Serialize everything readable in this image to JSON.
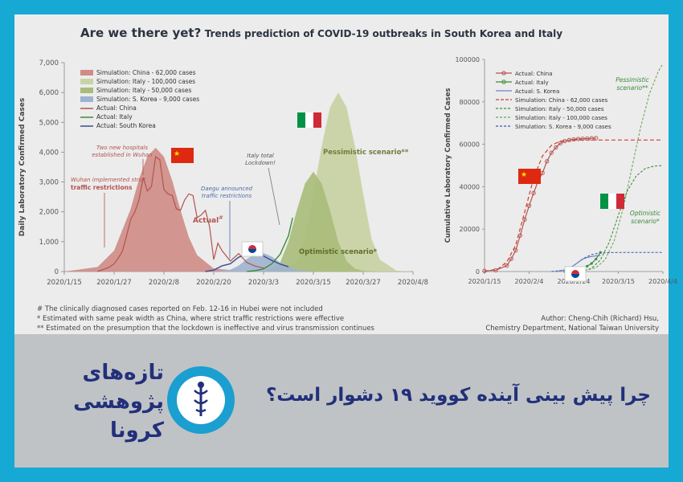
{
  "title": {
    "main": "Are we there yet?",
    "sub": "Trends prediction of COVID-19 outbreaks in South Korea and Italy"
  },
  "footnotes": [
    "#  The clinically diagnosed cases reported on Feb. 12-16 in Hubei were not included",
    "*  Estimated with same peak width as China, where strict traffic restrictions were effective",
    "** Estimated on the presumption that the lockdown is ineffective and virus transmission continues"
  ],
  "author": {
    "line1": "Author: Cheng-Chih (Richard) Hsu,",
    "line2": "Chemistry Department, National Taiwan University"
  },
  "banner": {
    "persian_title": "چرا پیش بینی آینده کووید ۱۹ دشوار است؟",
    "logo_text_1": "تازه‌های",
    "logo_text_2": "پژوهشی",
    "logo_text_3": "کرونا"
  },
  "colors": {
    "china": "#b4534f",
    "china_fill": "#cf8c86",
    "italy_pess": "#c9d3a5",
    "italy_opt": "#a9bd79",
    "italy_actual": "#3d8b3d",
    "korea": "#3a4e8c",
    "korea_fill": "#9fb2cf",
    "annot": "#b4534f",
    "blue_annot": "#4a6ea8"
  },
  "chart_data": [
    {
      "type": "area",
      "ylabel": "Daily Laboratory Confirmed Cases",
      "xlabel": "",
      "x_ticks": [
        "2020/1/15",
        "2020/1/27",
        "2020/2/8",
        "2020/2/20",
        "2020/3/3",
        "2020/3/15",
        "2020/3/27",
        "2020/4/8"
      ],
      "y_ticks": [
        "0",
        "1,000",
        "2,000",
        "3,000",
        "4,000",
        "5,000",
        "6,000",
        "7,000"
      ],
      "ylim": [
        0,
        7000
      ],
      "xlim_days": [
        0,
        84
      ],
      "legend": [
        "Simulation: China - 62,000 cases",
        "Simulation: Italy -  100,000 cases",
        "Simulation: Italy -   50,000 cases",
        "Simulation: S. Korea - 9,000 cases",
        "Actual: China",
        "Actual: Italy",
        "Actual: South Korea"
      ],
      "series": [
        {
          "name": "Simulation: China - 62,000 cases",
          "peak_date": "2020/2/6",
          "peak": 4150,
          "x_days": [
            0,
            8,
            12,
            16,
            18,
            20,
            22,
            24,
            26,
            28,
            30,
            32,
            36,
            44
          ],
          "values": [
            0,
            150,
            700,
            2100,
            3100,
            3850,
            4150,
            3850,
            3050,
            2050,
            1150,
            550,
            100,
            0
          ]
        },
        {
          "name": "Simulation: Italy -  100,000 cases",
          "peak_date": "2020/3/18",
          "peak": 6000,
          "x_days": [
            52,
            56,
            58,
            60,
            62,
            64,
            66,
            68,
            70,
            72,
            74,
            76,
            80,
            84
          ],
          "values": [
            0,
            300,
            1100,
            2600,
            4200,
            5500,
            6000,
            5500,
            4200,
            2600,
            1100,
            400,
            30,
            0
          ]
        },
        {
          "name": "Simulation: Italy -   50,000 cases",
          "peak_date": "2020/3/13",
          "peak": 3350,
          "x_days": [
            48,
            52,
            54,
            56,
            58,
            60,
            62,
            64,
            66,
            68,
            70,
            72,
            76
          ],
          "values": [
            0,
            300,
            1000,
            2050,
            2950,
            3350,
            2950,
            2050,
            1000,
            350,
            100,
            20,
            0
          ]
        },
        {
          "name": "Simulation: S. Korea - 9,000 cases",
          "peak_date": "2020/3/1",
          "peak": 620,
          "x_days": [
            36,
            40,
            42,
            44,
            46,
            48,
            50,
            52,
            56,
            60
          ],
          "values": [
            0,
            60,
            200,
            420,
            600,
            620,
            500,
            300,
            60,
            0
          ]
        },
        {
          "name": "Actual: China",
          "x_days": [
            8,
            10,
            11,
            12,
            13,
            14,
            15,
            16,
            17,
            18,
            19,
            20,
            21,
            22,
            23,
            24,
            25,
            26,
            27,
            28,
            29,
            30,
            31,
            32,
            33,
            34,
            35,
            36,
            37,
            38,
            40,
            42,
            44,
            46,
            48
          ],
          "values": [
            0,
            100,
            160,
            260,
            450,
            680,
            1200,
            1750,
            2000,
            2400,
            3150,
            2700,
            2850,
            3850,
            3750,
            2750,
            2600,
            2550,
            2100,
            2050,
            2400,
            2600,
            2550,
            1800,
            1900,
            2050,
            1500,
            400,
            950,
            700,
            350,
            600,
            300,
            180,
            120
          ]
        },
        {
          "name": "Actual: Italy",
          "x_days": [
            44,
            46,
            48,
            50,
            52,
            54,
            55
          ],
          "values": [
            0,
            30,
            90,
            260,
            580,
            1200,
            1800
          ]
        },
        {
          "name": "Actual: South Korea",
          "x_days": [
            34,
            36,
            38,
            40,
            42,
            44,
            46,
            48,
            50,
            52,
            54
          ],
          "values": [
            0,
            50,
            190,
            260,
            480,
            580,
            820,
            520,
            370,
            250,
            160
          ]
        }
      ],
      "annotations": [
        "Two new hospitals established in Wuhan",
        "Wuhan implemented strict traffic restrictions",
        "Actual #",
        "Daegu announced traffic restrictions",
        "Italy total Lockdown!",
        "Pessimistic  scenario**",
        "Optimistic  scenario*"
      ]
    },
    {
      "type": "line",
      "ylabel": "Cumulative Laboratory Confirmed Cases",
      "xlabel": "",
      "x_ticks": [
        "2020/1/15",
        "2020/2/4",
        "2020/2/24",
        "2020/3/15",
        "2020/4/4"
      ],
      "y_ticks": [
        "0",
        "20000",
        "40000",
        "60000",
        "80000",
        "100000"
      ],
      "ylim": [
        0,
        100000
      ],
      "xlim_days": [
        0,
        80
      ],
      "legend": [
        "Actual: China",
        "Actual: Italy",
        "Actual: S. Korea",
        "Simulation: China - 62,000 cases",
        "Simulation: Italy -   50,000 cases",
        "Simulation: Italy - 100,000 cases",
        "Simulation: S. Korea - 9,000 cases"
      ],
      "series": [
        {
          "name": "Actual: China",
          "x_days": [
            0,
            5,
            10,
            12,
            14,
            16,
            18,
            20,
            22,
            24,
            26,
            28,
            30,
            32,
            34,
            36,
            38,
            40,
            42,
            44,
            46,
            48,
            50
          ],
          "values": [
            300,
            600,
            2800,
            6000,
            10000,
            17000,
            24500,
            31000,
            37000,
            42500,
            46500,
            52000,
            56000,
            58500,
            60500,
            61500,
            62000,
            62300,
            62500,
            62600,
            62700,
            62800,
            62900
          ]
        },
        {
          "name": "Actual: Italy",
          "x_days": [
            36,
            38,
            40,
            42,
            44,
            46,
            48,
            50,
            52
          ],
          "values": [
            0,
            100,
            400,
            900,
            1600,
            2500,
            3800,
            5900,
            9000
          ]
        },
        {
          "name": "Actual: S. Korea",
          "x_days": [
            32,
            34,
            36,
            38,
            40,
            42,
            44,
            46,
            48,
            50,
            52
          ],
          "values": [
            0,
            300,
            800,
            1700,
            2900,
            4300,
            5800,
            6600,
            7100,
            7400,
            7500
          ]
        },
        {
          "name": "Simulation: China - 62,000 cases",
          "x_days": [
            0,
            6,
            10,
            14,
            18,
            22,
            26,
            30,
            34,
            40,
            80
          ],
          "values": [
            0,
            1200,
            4500,
            12500,
            28000,
            44000,
            54500,
            59500,
            61500,
            62000,
            62000
          ]
        },
        {
          "name": "Simulation: Italy -   50,000 cases",
          "x_days": [
            36,
            44,
            48,
            52,
            56,
            60,
            64,
            68,
            72,
            76,
            80
          ],
          "values": [
            0,
            300,
            1500,
            5500,
            14000,
            26500,
            38000,
            45000,
            48500,
            49700,
            50000
          ]
        },
        {
          "name": "Simulation: Italy - 100,000 cases",
          "x_days": [
            36,
            44,
            50,
            54,
            58,
            62,
            66,
            70,
            74,
            78,
            80
          ],
          "values": [
            0,
            250,
            1800,
            5500,
            14000,
            29000,
            48500,
            68000,
            84000,
            94500,
            98000
          ]
        },
        {
          "name": "Simulation: S. Korea - 9,000 cases",
          "x_days": [
            30,
            36,
            40,
            44,
            48,
            52,
            60,
            80
          ],
          "values": [
            0,
            700,
            2800,
            6000,
            8000,
            8800,
            9000,
            9000
          ]
        }
      ],
      "annotations": [
        "Pessimistic scenario**",
        "Optimistic scenario*"
      ]
    }
  ]
}
